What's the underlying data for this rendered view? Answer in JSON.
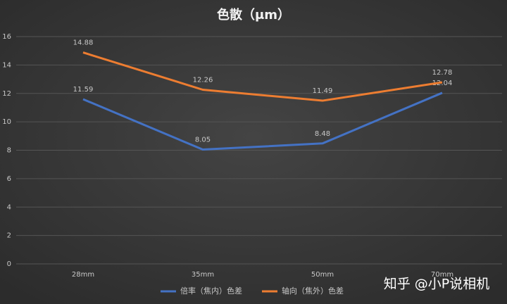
{
  "chart_data": {
    "type": "line",
    "title": "色散（μm）",
    "categories": [
      "28mm",
      "35mm",
      "50mm",
      "70mm"
    ],
    "series": [
      {
        "name": "倍率（焦内）色差",
        "color": "#4472c4",
        "values": [
          11.59,
          8.05,
          8.48,
          12.04
        ]
      },
      {
        "name": "轴向（焦外）色差",
        "color": "#ed7d31",
        "values": [
          14.88,
          12.26,
          11.49,
          12.78
        ]
      }
    ],
    "ylim": [
      0,
      16
    ],
    "yticks": [
      0,
      2,
      4,
      6,
      8,
      10,
      12,
      14,
      16
    ],
    "grid": true,
    "legend": "bottom",
    "watermark": "知乎 @小P说相机"
  }
}
